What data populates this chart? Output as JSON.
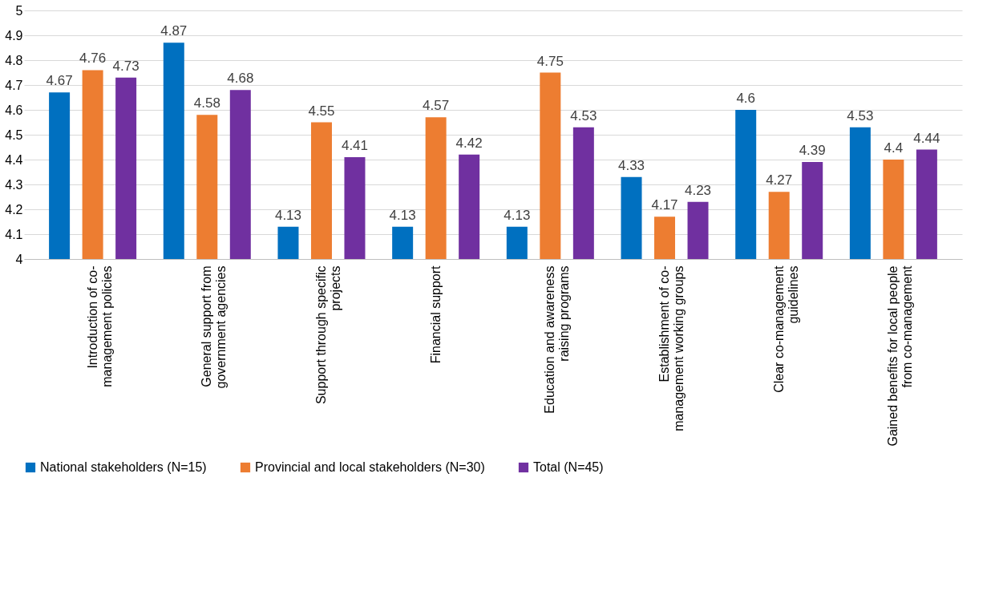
{
  "chart_data": {
    "type": "bar",
    "categories": [
      "Introduction of co-\nmanagement policies",
      "General support from\ngovernment agencies",
      "Support through specific\nprojects",
      "Financial support",
      "Education and awareness\nraising programs",
      "Establishment of co-\nmanagement working groups",
      "Clear co-management\nguidelines",
      "Gained benefits for local people\nfrom co-management"
    ],
    "series": [
      {
        "name": "National stakeholders (N=15)",
        "color": "#0070c0",
        "values": [
          4.67,
          4.87,
          4.13,
          4.13,
          4.13,
          4.33,
          4.6,
          4.53
        ]
      },
      {
        "name": "Provincial and local stakeholders (N=30)",
        "color": "#ed7d31",
        "values": [
          4.76,
          4.58,
          4.55,
          4.57,
          4.75,
          4.17,
          4.27,
          4.4
        ]
      },
      {
        "name": "Total (N=45)",
        "color": "#7030a0",
        "values": [
          4.73,
          4.68,
          4.41,
          4.42,
          4.53,
          4.23,
          4.39,
          4.44
        ]
      }
    ],
    "ylim": [
      4,
      5
    ],
    "yticks": [
      4,
      4.1,
      4.2,
      4.3,
      4.4,
      4.5,
      4.6,
      4.7,
      4.8,
      4.9,
      5
    ],
    "grid": "y",
    "legend": "bottom",
    "data_labels": true
  }
}
